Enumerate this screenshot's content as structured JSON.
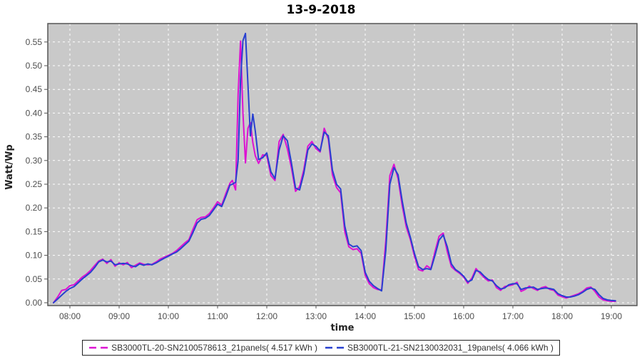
{
  "colors": {
    "plot_background": "#c9c9c9",
    "gridline": "#ffffff",
    "plot_border": "#555555",
    "tick_label": "#4d4d4d",
    "axis_label": "#222222",
    "title": "#000000",
    "legend_border": "#222222",
    "legend_text": "#333333",
    "series1": "#dd11d2",
    "series2": "#2840d0"
  },
  "chart_data": {
    "type": "line",
    "title": "13-9-2018",
    "xlabel": "time",
    "ylabel": "Watt/Wp",
    "grid": "white dashed on gray plot background",
    "legend_position": "bottom",
    "x_ticks": [
      "08:00",
      "09:00",
      "10:00",
      "11:00",
      "12:00",
      "13:00",
      "14:00",
      "15:00",
      "16:00",
      "17:00",
      "18:00",
      "19:00"
    ],
    "y_ticks": [
      "0.00",
      "0.05",
      "0.10",
      "0.15",
      "0.20",
      "0.25",
      "0.30",
      "0.35",
      "0.40",
      "0.45",
      "0.50",
      "0.55"
    ],
    "ylim": [
      0.0,
      0.59
    ],
    "xlim": [
      "07:33",
      "19:22"
    ],
    "x": [
      "07:40",
      "07:45",
      "07:50",
      "07:55",
      "08:00",
      "08:05",
      "08:10",
      "08:15",
      "08:20",
      "08:25",
      "08:30",
      "08:35",
      "08:40",
      "08:45",
      "08:50",
      "08:55",
      "09:00",
      "09:05",
      "09:10",
      "09:15",
      "09:20",
      "09:25",
      "09:30",
      "09:35",
      "09:40",
      "09:45",
      "09:50",
      "09:55",
      "10:00",
      "10:05",
      "10:10",
      "10:15",
      "10:20",
      "10:25",
      "10:30",
      "10:35",
      "10:40",
      "10:45",
      "10:50",
      "10:55",
      "11:00",
      "11:05",
      "11:10",
      "11:15",
      "11:18",
      "11:22",
      "11:25",
      "11:28",
      "11:31",
      "11:34",
      "11:37",
      "11:40",
      "11:43",
      "11:46",
      "11:50",
      "11:55",
      "12:00",
      "12:05",
      "12:10",
      "12:15",
      "12:20",
      "12:25",
      "12:30",
      "12:35",
      "12:40",
      "12:45",
      "12:50",
      "12:55",
      "13:00",
      "13:05",
      "13:10",
      "13:15",
      "13:20",
      "13:25",
      "13:30",
      "13:35",
      "13:40",
      "13:45",
      "13:50",
      "13:55",
      "14:00",
      "14:05",
      "14:10",
      "14:15",
      "14:20",
      "14:25",
      "14:30",
      "14:35",
      "14:40",
      "14:45",
      "14:50",
      "14:55",
      "15:00",
      "15:05",
      "15:10",
      "15:15",
      "15:20",
      "15:25",
      "15:30",
      "15:35",
      "15:40",
      "15:45",
      "15:50",
      "15:55",
      "16:00",
      "16:05",
      "16:10",
      "16:15",
      "16:20",
      "16:25",
      "16:30",
      "16:35",
      "16:40",
      "16:45",
      "16:50",
      "16:55",
      "17:00",
      "17:05",
      "17:10",
      "17:15",
      "17:20",
      "17:25",
      "17:30",
      "17:35",
      "17:40",
      "17:45",
      "17:50",
      "17:55",
      "18:00",
      "18:05",
      "18:10",
      "18:15",
      "18:20",
      "18:25",
      "18:30",
      "18:35",
      "18:40",
      "18:45",
      "18:50",
      "18:55",
      "19:00",
      "19:05"
    ],
    "series": [
      {
        "name": "SB3000TL-20-SN2100578613_21panels( 4.517 kWh )",
        "energy_kwh": 4.517,
        "color": "#dd11d2",
        "values": [
          0.0,
          0.012,
          0.026,
          0.028,
          0.036,
          0.038,
          0.046,
          0.054,
          0.06,
          0.068,
          0.078,
          0.088,
          0.092,
          0.083,
          0.091,
          0.077,
          0.084,
          0.08,
          0.085,
          0.074,
          0.079,
          0.084,
          0.081,
          0.08,
          0.081,
          0.086,
          0.092,
          0.096,
          0.1,
          0.104,
          0.11,
          0.118,
          0.126,
          0.133,
          0.155,
          0.175,
          0.18,
          0.181,
          0.188,
          0.2,
          0.213,
          0.206,
          0.23,
          0.252,
          0.258,
          0.238,
          0.44,
          0.552,
          0.4,
          0.295,
          0.368,
          0.38,
          0.338,
          0.31,
          0.294,
          0.312,
          0.31,
          0.268,
          0.258,
          0.34,
          0.355,
          0.325,
          0.285,
          0.235,
          0.245,
          0.28,
          0.33,
          0.34,
          0.325,
          0.318,
          0.368,
          0.345,
          0.27,
          0.243,
          0.232,
          0.15,
          0.118,
          0.112,
          0.114,
          0.104,
          0.058,
          0.04,
          0.032,
          0.028,
          0.027,
          0.13,
          0.268,
          0.292,
          0.262,
          0.205,
          0.16,
          0.133,
          0.098,
          0.07,
          0.067,
          0.078,
          0.072,
          0.108,
          0.14,
          0.147,
          0.108,
          0.076,
          0.068,
          0.062,
          0.054,
          0.041,
          0.052,
          0.072,
          0.062,
          0.053,
          0.046,
          0.048,
          0.032,
          0.026,
          0.034,
          0.036,
          0.038,
          0.043,
          0.024,
          0.028,
          0.035,
          0.03,
          0.026,
          0.032,
          0.034,
          0.028,
          0.026,
          0.016,
          0.013,
          0.01,
          0.013,
          0.016,
          0.019,
          0.024,
          0.031,
          0.033,
          0.024,
          0.012,
          0.006,
          0.004,
          0.003,
          0.003
        ]
      },
      {
        "name": "SB3000TL-21-SN2130032031_19panels( 4.066 kWh )",
        "energy_kwh": 4.066,
        "color": "#2840d0",
        "values": [
          0.0,
          0.008,
          0.016,
          0.024,
          0.03,
          0.034,
          0.042,
          0.05,
          0.057,
          0.064,
          0.074,
          0.086,
          0.09,
          0.086,
          0.088,
          0.08,
          0.082,
          0.083,
          0.082,
          0.078,
          0.076,
          0.082,
          0.079,
          0.082,
          0.08,
          0.084,
          0.089,
          0.094,
          0.098,
          0.103,
          0.107,
          0.114,
          0.122,
          0.13,
          0.148,
          0.168,
          0.176,
          0.178,
          0.184,
          0.196,
          0.208,
          0.203,
          0.224,
          0.248,
          0.25,
          0.254,
          0.3,
          0.47,
          0.553,
          0.568,
          0.46,
          0.352,
          0.398,
          0.362,
          0.302,
          0.306,
          0.316,
          0.276,
          0.262,
          0.322,
          0.352,
          0.342,
          0.295,
          0.242,
          0.238,
          0.272,
          0.322,
          0.335,
          0.33,
          0.32,
          0.36,
          0.352,
          0.28,
          0.25,
          0.24,
          0.162,
          0.124,
          0.118,
          0.12,
          0.11,
          0.064,
          0.045,
          0.036,
          0.03,
          0.025,
          0.11,
          0.25,
          0.285,
          0.27,
          0.215,
          0.168,
          0.138,
          0.104,
          0.076,
          0.07,
          0.072,
          0.07,
          0.1,
          0.132,
          0.143,
          0.118,
          0.082,
          0.07,
          0.064,
          0.056,
          0.044,
          0.048,
          0.068,
          0.065,
          0.056,
          0.049,
          0.046,
          0.036,
          0.029,
          0.031,
          0.038,
          0.04,
          0.04,
          0.028,
          0.031,
          0.032,
          0.033,
          0.028,
          0.03,
          0.031,
          0.03,
          0.028,
          0.019,
          0.015,
          0.012,
          0.012,
          0.014,
          0.017,
          0.022,
          0.028,
          0.031,
          0.028,
          0.017,
          0.009,
          0.006,
          0.005,
          0.004
        ]
      }
    ]
  }
}
